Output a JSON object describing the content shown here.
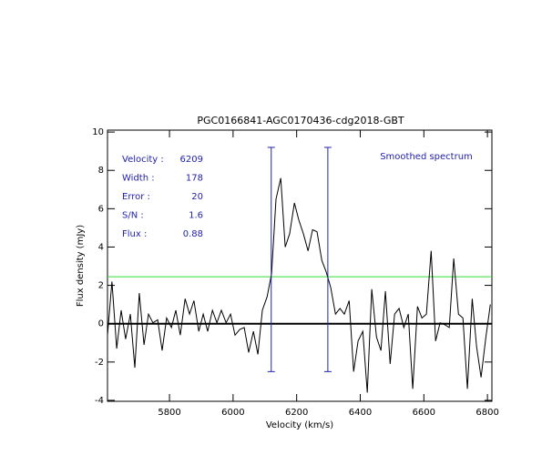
{
  "chart_data": {
    "type": "line",
    "title": "PGC0166841-AGC0170436-cdg2018-GBT",
    "x_label": "Velocity (km/s)",
    "y_label": "Flux density (mJy)",
    "xlim": [
      5605,
      6814
    ],
    "ylim": [
      -4.05,
      10.1
    ],
    "xticks": [
      5800,
      6000,
      6200,
      6400,
      6600,
      6800
    ],
    "yticks": [
      -4,
      -2,
      0,
      2,
      4,
      6,
      8,
      10
    ],
    "color": "#000000",
    "x": [
      5605,
      5619,
      5634,
      5648,
      5662,
      5677,
      5691,
      5705,
      5720,
      5734,
      5748,
      5763,
      5777,
      5791,
      5806,
      5820,
      5834,
      5849,
      5863,
      5877,
      5892,
      5906,
      5920,
      5935,
      5949,
      5963,
      5978,
      5992,
      6006,
      6021,
      6035,
      6049,
      6064,
      6078,
      6092,
      6107,
      6121,
      6135,
      6150,
      6164,
      6178,
      6193,
      6207,
      6221,
      6236,
      6250,
      6264,
      6279,
      6293,
      6307,
      6322,
      6336,
      6350,
      6365,
      6379,
      6393,
      6408,
      6422,
      6436,
      6451,
      6465,
      6479,
      6494,
      6508,
      6522,
      6537,
      6551,
      6565,
      6580,
      6594,
      6608,
      6623,
      6637,
      6651,
      6666,
      6680,
      6694,
      6709,
      6723,
      6737,
      6752,
      6766,
      6780,
      6795,
      6809
    ],
    "values": [
      -0.6,
      2.2,
      -1.3,
      0.7,
      -0.8,
      0.5,
      -2.3,
      1.6,
      -1.1,
      0.5,
      0.05,
      0.2,
      -1.4,
      0.3,
      -0.2,
      0.7,
      -0.6,
      1.3,
      0.5,
      1.2,
      -0.4,
      0.5,
      -0.4,
      0.7,
      0.05,
      0.7,
      0.05,
      0.5,
      -0.6,
      -0.3,
      -0.2,
      -1.5,
      -0.4,
      -1.6,
      0.7,
      1.4,
      2.6,
      6.5,
      7.6,
      4.0,
      4.7,
      6.3,
      5.4,
      4.7,
      3.8,
      4.9,
      4.8,
      3.3,
      2.7,
      1.9,
      0.5,
      0.8,
      0.5,
      1.2,
      -2.5,
      -0.9,
      -0.4,
      -3.6,
      1.8,
      -0.7,
      -1.4,
      1.7,
      -2.1,
      0.5,
      0.8,
      -0.2,
      0.5,
      -3.4,
      0.9,
      0.3,
      0.5,
      3.8,
      -0.9,
      0.05,
      -0.05,
      -0.2,
      3.4,
      0.5,
      0.3,
      -3.4,
      1.3,
      -1.2,
      -2.8,
      -0.7,
      1.0
    ],
    "hlines": [
      {
        "value": 0,
        "color": "#000000"
      },
      {
        "value": 2.45,
        "color": "#33dd33"
      }
    ],
    "vlines": [
      {
        "value": 6120,
        "ymin": -2.5,
        "ymax": 9.2,
        "color": "#2222aa"
      },
      {
        "value": 6298,
        "ymin": -2.5,
        "ymax": 9.2,
        "color": "#2222aa"
      }
    ],
    "stats": [
      {
        "label": "Velocity :",
        "value": 6209
      },
      {
        "label": "Width :",
        "value": 178
      },
      {
        "label": "Error :",
        "value": 20
      },
      {
        "label": "S/N :",
        "value": 1.6
      },
      {
        "label": "Flux :",
        "value": 0.88
      }
    ],
    "annotation": "Smoothed spectrum"
  }
}
